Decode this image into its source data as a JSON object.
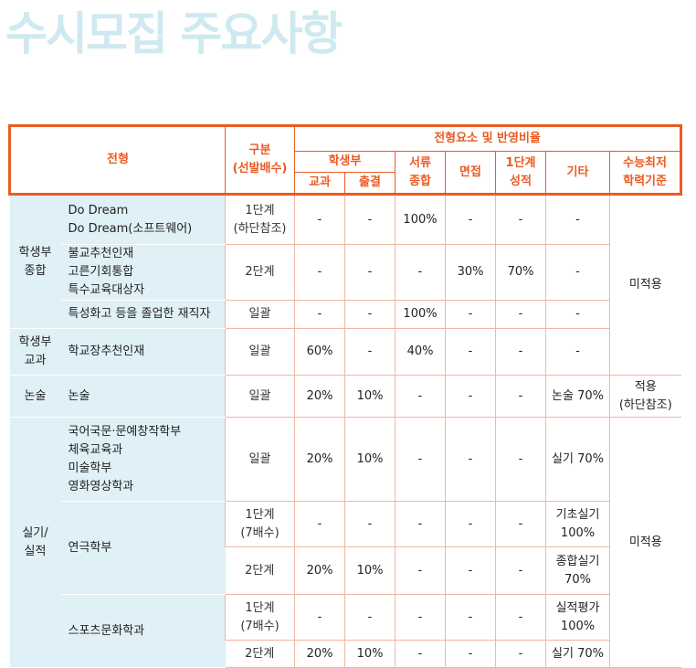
{
  "title": "수시모집 주요사항",
  "header": {
    "type": "전형",
    "division": "구분\n(선발배수)",
    "elements": "전형요소 및 반영비율",
    "school_record": "학생부",
    "subject": "교과",
    "attendance": "출결",
    "document": "서류\n종합",
    "interview": "면접",
    "stage1": "1단계\n성적",
    "other": "기타",
    "csat": "수능최저\n학력기준"
  },
  "rows": {
    "r1": {
      "cat": "학생부\n종합",
      "prog": [
        "Do Dream",
        "Do Dream(소프트웨어)"
      ],
      "stage": "1단계\n(하단참조)",
      "subject": "-",
      "attendance": "-",
      "document": "100%",
      "interview": "-",
      "stage1": "-",
      "other": "-",
      "csat": "미적용"
    },
    "r2": {
      "prog": [
        "불교추천인재",
        "고른기회통합",
        "특수교육대상자"
      ],
      "stage": "2단계",
      "subject": "-",
      "attendance": "-",
      "document": "-",
      "interview": "30%",
      "stage1": "70%",
      "other": "-"
    },
    "r3": {
      "prog": [
        "특성화고 등을 졸업한 재직자"
      ],
      "stage": "일괄",
      "subject": "-",
      "attendance": "-",
      "document": "100%",
      "interview": "-",
      "stage1": "-",
      "other": "-"
    },
    "r4": {
      "cat": "학생부\n교과",
      "prog": [
        "학교장추천인재"
      ],
      "stage": "일괄",
      "subject": "60%",
      "attendance": "-",
      "document": "40%",
      "interview": "-",
      "stage1": "-",
      "other": "-"
    },
    "r5": {
      "cat": "논술",
      "prog": [
        "논술"
      ],
      "stage": "일괄",
      "subject": "20%",
      "attendance": "10%",
      "document": "-",
      "interview": "-",
      "stage1": "-",
      "other": "논술 70%",
      "csat": "적용\n(하단참조)"
    },
    "r6": {
      "cat": "실기/\n실적",
      "prog": [
        "국어국문·문예창작학부",
        "체육교육과",
        "미술학부",
        "영화영상학과"
      ],
      "stage": "일괄",
      "subject": "20%",
      "attendance": "10%",
      "document": "-",
      "interview": "-",
      "stage1": "-",
      "other": "실기 70%",
      "csat": "미적용"
    },
    "r7": {
      "prog": [
        "연극학부"
      ],
      "stage": "1단계\n(7배수)",
      "subject": "-",
      "attendance": "-",
      "document": "-",
      "interview": "-",
      "stage1": "-",
      "other": "기초실기\n100%"
    },
    "r8": {
      "stage": "2단계",
      "subject": "20%",
      "attendance": "10%",
      "document": "-",
      "interview": "-",
      "stage1": "-",
      "other": "종합실기\n70%"
    },
    "r9": {
      "prog": [
        "스포츠문화학과"
      ],
      "stage": "1단계\n(7배수)",
      "subject": "-",
      "attendance": "-",
      "document": "-",
      "interview": "-",
      "stage1": "-",
      "other": "실적평가\n100%"
    },
    "r10": {
      "stage": "2단계",
      "subject": "20%",
      "attendance": "10%",
      "document": "-",
      "interview": "-",
      "stage1": "-",
      "other": "실기 70%"
    }
  }
}
